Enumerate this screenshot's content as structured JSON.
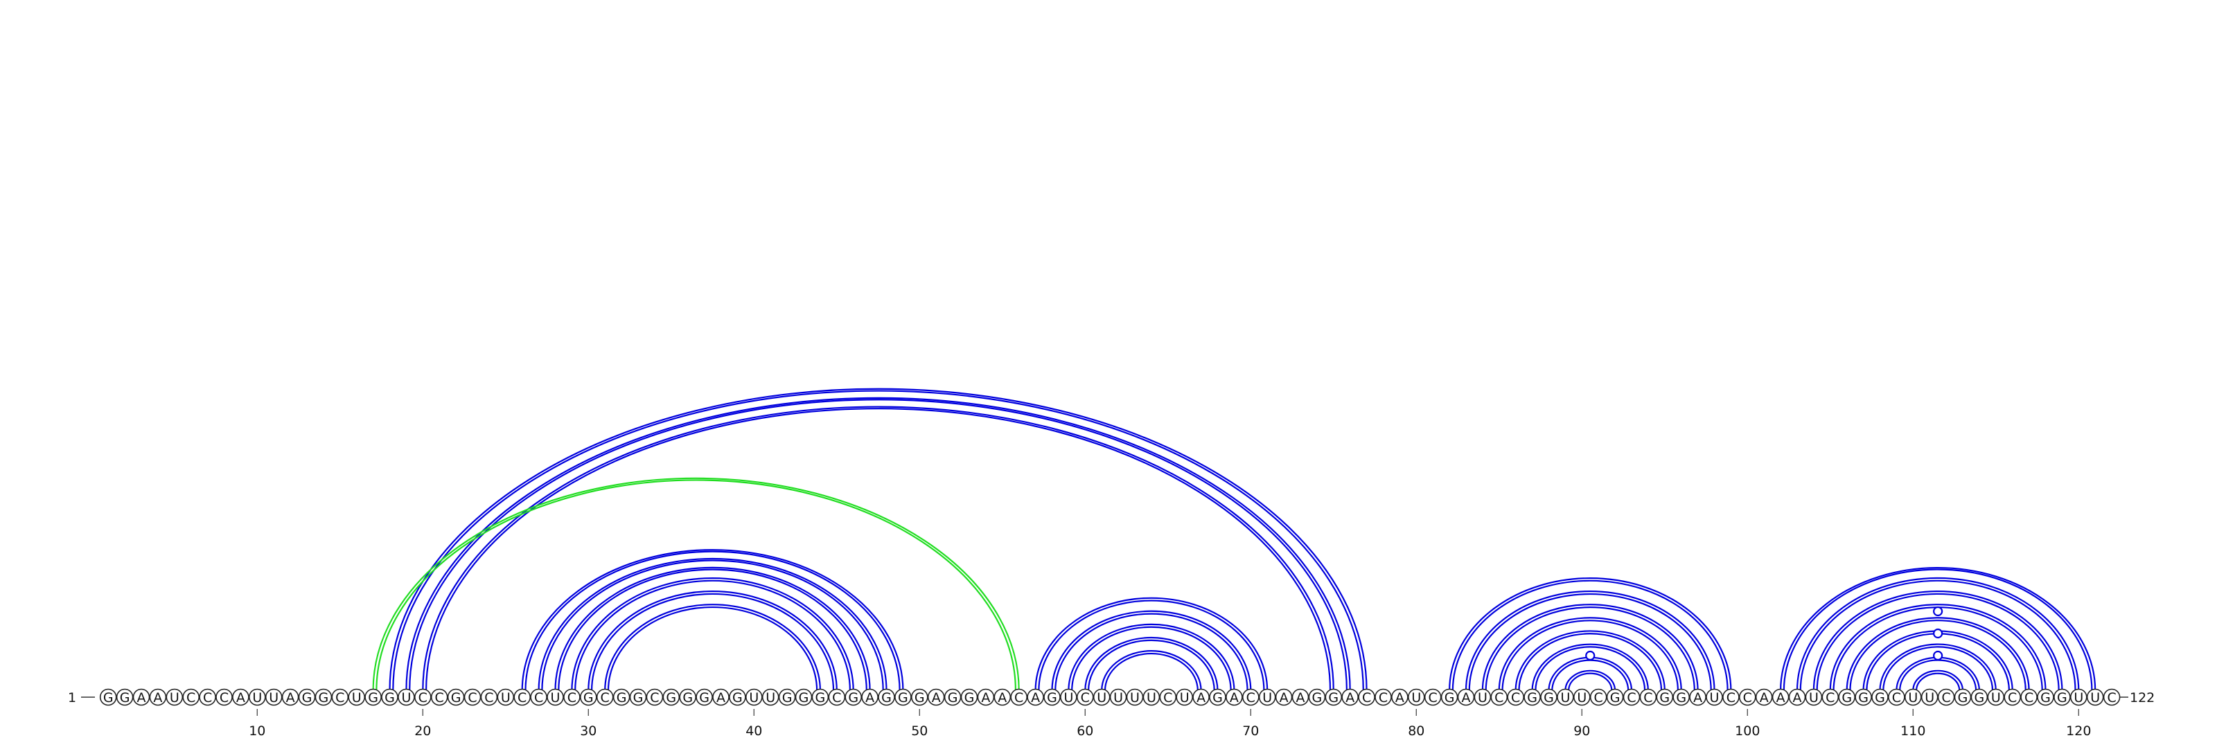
{
  "diagram": {
    "sequence": "GGAAUCCCAUUAGGCUGGUCCGCCUCCUCGCGGCGGGAGUUGGGCGAGGGAGGAACAGUCUUUUCUAGACUAAGGACCAUCGAUCCGGUUCGCCGGAUCCAAAUCGGGCUUCGGUCCGGUUC",
    "length": 122,
    "start_label": "1",
    "end_label": "122",
    "tick_positions": [
      10,
      20,
      30,
      40,
      50,
      60,
      70,
      80,
      90,
      100,
      110,
      120
    ],
    "colors": {
      "primary_arc": "#0000dd",
      "alternate_arc": "#22dd22"
    },
    "helices": [
      {
        "color": "#0000dd",
        "pairs": [
          [
            18,
            77
          ],
          [
            19,
            76
          ],
          [
            20,
            75
          ]
        ]
      },
      {
        "color": "#22dd22",
        "pairs": [
          [
            17,
            56
          ]
        ]
      },
      {
        "color": "#0000dd",
        "pairs": [
          [
            26,
            49
          ],
          [
            27,
            48
          ],
          [
            28,
            47
          ],
          [
            29,
            46
          ],
          [
            30,
            45
          ],
          [
            31,
            44
          ]
        ]
      },
      {
        "color": "#0000dd",
        "pairs": [
          [
            57,
            71
          ],
          [
            58,
            70
          ],
          [
            59,
            69
          ],
          [
            60,
            68
          ],
          [
            61,
            67
          ]
        ]
      },
      {
        "color": "#0000dd",
        "pairs": [
          [
            82,
            99
          ],
          [
            83,
            98
          ],
          [
            84,
            97
          ],
          [
            85,
            96
          ],
          [
            86,
            95
          ],
          [
            87,
            94
          ],
          [
            88,
            93
          ],
          [
            89,
            92
          ]
        ]
      },
      {
        "color": "#0000dd",
        "pairs": [
          [
            102,
            121
          ],
          [
            103,
            120
          ],
          [
            104,
            119
          ],
          [
            105,
            118
          ],
          [
            106,
            117
          ],
          [
            107,
            116
          ],
          [
            108,
            115
          ],
          [
            109,
            114
          ],
          [
            110,
            113
          ]
        ]
      }
    ],
    "bulges": [
      90,
      111
    ]
  }
}
